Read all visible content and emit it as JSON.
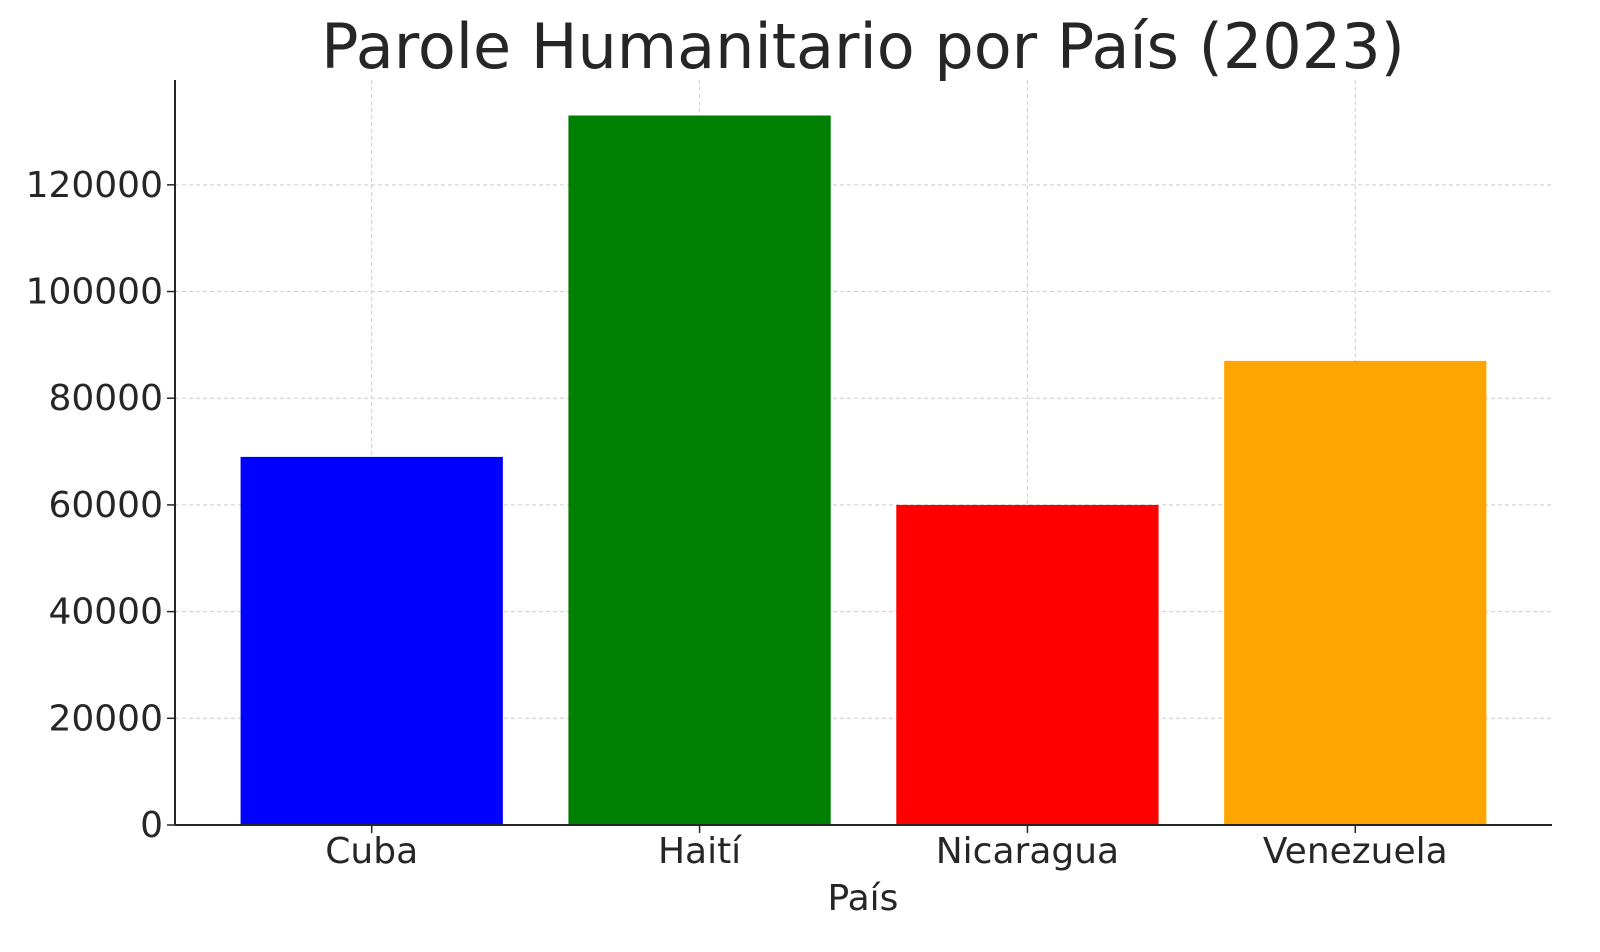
{
  "chart_data": {
    "type": "bar",
    "title": "Parole Humanitario por País (2023)",
    "xlabel": "País",
    "ylabel": "",
    "categories": [
      "Cuba",
      "Haití",
      "Nicaragua",
      "Venezuela"
    ],
    "values": [
      69000,
      133000,
      60000,
      87000
    ],
    "colors": [
      "#0000ff",
      "#008000",
      "#ff0000",
      "#ffa500"
    ],
    "ylim": [
      0,
      139650
    ],
    "yticks": [
      0,
      20000,
      40000,
      60000,
      80000,
      100000,
      120000
    ],
    "grid": true
  }
}
